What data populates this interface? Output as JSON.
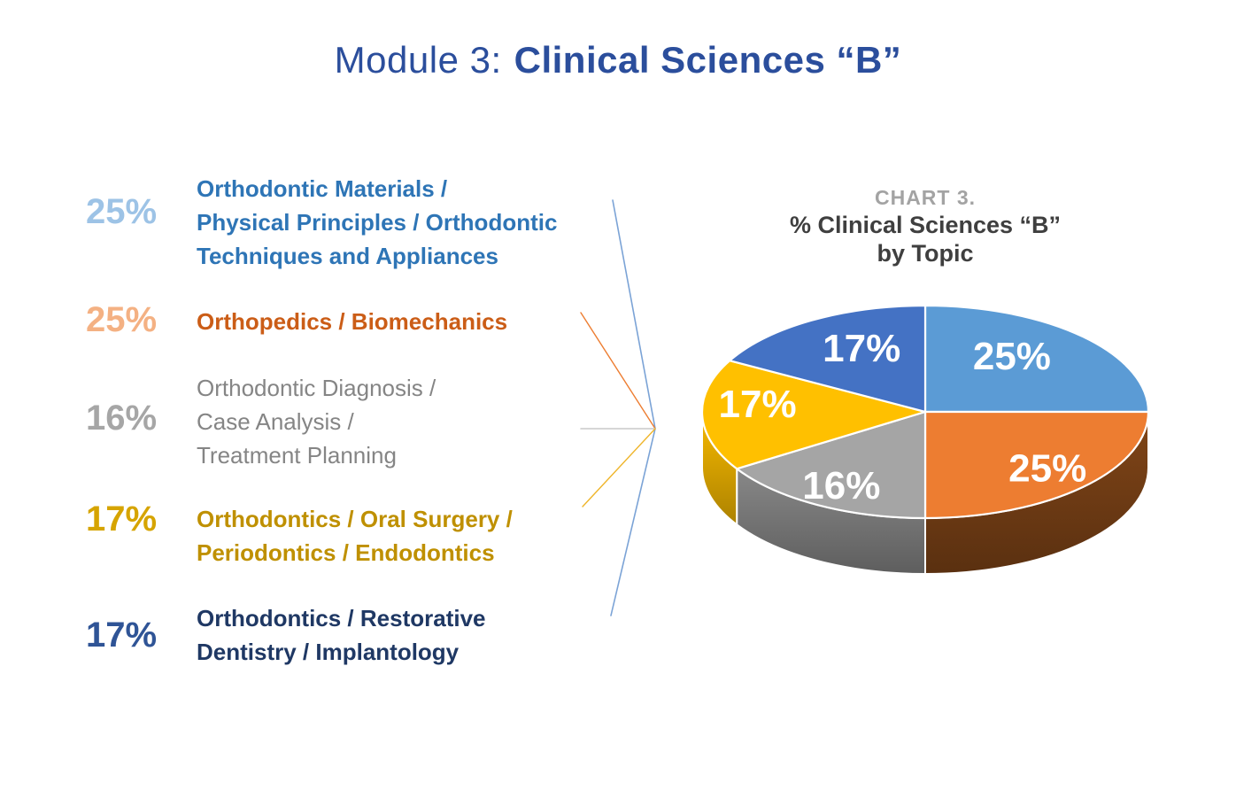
{
  "title": {
    "part1": "Module 3:",
    "part2": "Clinical Sciences “B”",
    "color": "#2B4E9C"
  },
  "legend": {
    "items": [
      {
        "pct": "25%",
        "pct_color": "#9DC3E6",
        "text_color": "#2E75B6",
        "lines": [
          "Orthodontic Materials /",
          "Physical Principles / Orthodontic",
          "Techniques and Appliances"
        ]
      },
      {
        "pct": "25%",
        "pct_color": "#F4B183",
        "text_color": "#CB5D17",
        "lines": [
          "Orthopedics / Biomechanics"
        ]
      },
      {
        "pct": "16%",
        "pct_color": "#A6A6A6",
        "text_color": "#858585",
        "lines": [
          "Orthodontic Diagnosis /",
          "Case Analysis /",
          "Treatment Planning"
        ]
      },
      {
        "pct": "17%",
        "pct_color": "#D6A400",
        "text_color": "#BF9000",
        "lines": [
          "Orthodontics / Oral Surgery /",
          "Periodontics / Endodontics"
        ]
      },
      {
        "pct": "17%",
        "pct_color": "#2F5496",
        "text_color": "#1F3864",
        "lines": [
          "Orthodontics / Restorative",
          "Dentistry / Implantology"
        ]
      }
    ]
  },
  "chart": {
    "kicker": "CHART 3.",
    "kicker_color": "#A3A3A3",
    "title_line1": "% Clinical Sciences “B”",
    "title_line2": "by Topic",
    "title_color": "#3F3F3F"
  },
  "connector": {
    "colors": {
      "blue": "#7BA3D6",
      "orange": "#ED7D31",
      "gray": "#C9C9C9",
      "gold": "#EFB52A"
    }
  },
  "chart_data": {
    "type": "pie",
    "three_d": true,
    "title": "CHART 3. % Clinical Sciences “B” by Topic",
    "start_angle_deg": 0,
    "direction": "clockwise",
    "legend_position": "left",
    "labels_on_slices": true,
    "slices": [
      {
        "label": "Orthodontic Materials / Physical Principles / Orthodontic Techniques and Appliances",
        "value": 25,
        "display": "25%",
        "color": "#5B9BD5",
        "side_color": "#3E6F9E"
      },
      {
        "label": "Orthopedics / Biomechanics",
        "value": 25,
        "display": "25%",
        "color": "#ED7D31",
        "side_color": "#6E3B14"
      },
      {
        "label": "Orthodontic Diagnosis / Case Analysis / Treatment Planning",
        "value": 16,
        "display": "16%",
        "color": "#A5A5A5",
        "side_color": "#737373"
      },
      {
        "label": "Orthodontics / Oral Surgery / Periodontics / Endodontics",
        "value": 17,
        "display": "17%",
        "color": "#FFC000",
        "side_color": "#D29E00"
      },
      {
        "label": "Orthodontics / Restorative Dentistry / Implantology",
        "value": 17,
        "display": "17%",
        "color": "#4472C4",
        "side_color": "#2C4E8D"
      }
    ]
  }
}
